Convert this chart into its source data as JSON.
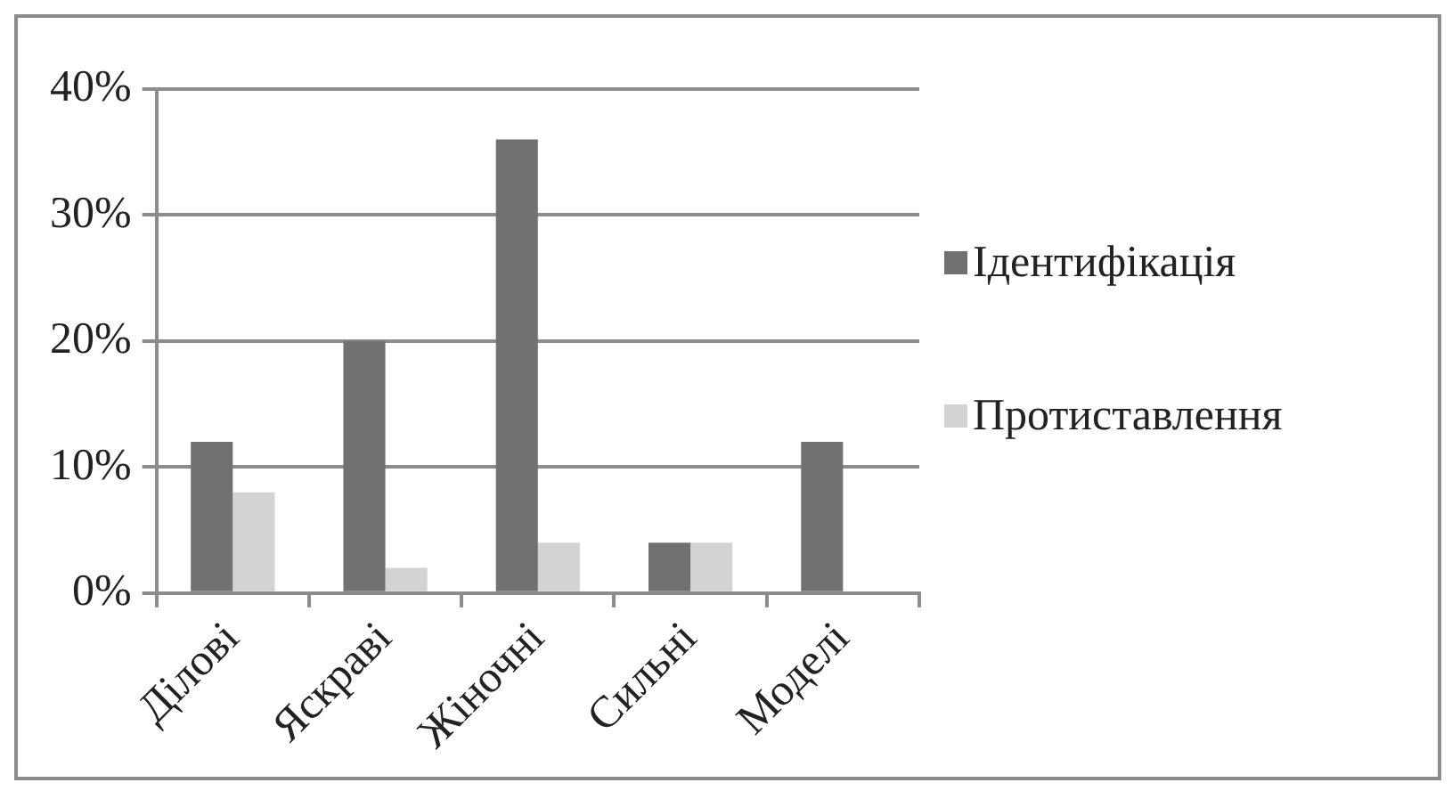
{
  "chart_data": {
    "type": "bar",
    "categories": [
      "Ділові",
      "Яскраві",
      "Жіночні",
      "Сильні",
      "Моделі"
    ],
    "series": [
      {
        "name": "Ідентифікація",
        "color": "#717171",
        "values": [
          12,
          20,
          36,
          4,
          12
        ]
      },
      {
        "name": "Протиставлення",
        "color": "#d3d3d3",
        "values": [
          8,
          2,
          4,
          4,
          0
        ]
      }
    ],
    "ylim": [
      0,
      40
    ],
    "yticks": [
      {
        "value": 0,
        "label": "0%"
      },
      {
        "value": 10,
        "label": "10%"
      },
      {
        "value": 20,
        "label": "20%"
      },
      {
        "value": 30,
        "label": "30%"
      },
      {
        "value": 40,
        "label": "40%"
      }
    ],
    "grid": "y",
    "legend": "right"
  }
}
